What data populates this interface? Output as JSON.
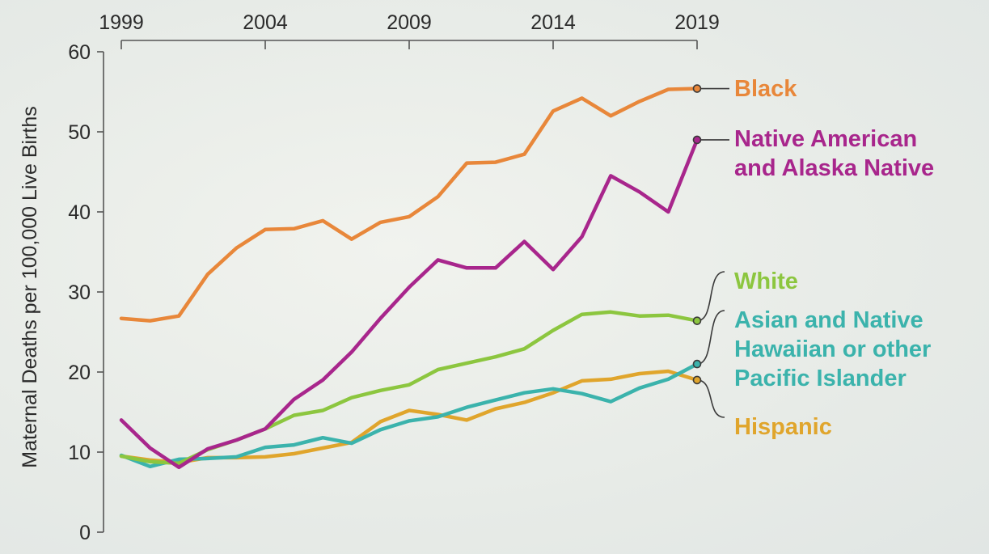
{
  "chart_data": {
    "type": "line",
    "xlabel": "",
    "ylabel": "Maternal Deaths per 100,000 Live Births",
    "xlim": [
      1999,
      2019
    ],
    "ylim": [
      0,
      60
    ],
    "x_ticks": [
      1999,
      2004,
      2009,
      2014,
      2019
    ],
    "y_ticks": [
      0,
      10,
      20,
      30,
      40,
      50,
      60
    ],
    "x_axis_position": "top",
    "grid": false,
    "legend_placement": "right, labels at line ends",
    "x": [
      1999,
      2000,
      2001,
      2002,
      2003,
      2004,
      2005,
      2006,
      2007,
      2008,
      2009,
      2010,
      2011,
      2012,
      2013,
      2014,
      2015,
      2016,
      2017,
      2018,
      2019
    ],
    "series": [
      {
        "name": "Black",
        "color": "#e8873a",
        "label_lines": [
          "Black"
        ],
        "values": [
          26.7,
          26.4,
          27.0,
          32.2,
          35.5,
          37.8,
          37.9,
          38.9,
          36.6,
          38.7,
          39.4,
          41.9,
          46.1,
          46.2,
          47.2,
          52.6,
          54.2,
          52.0,
          53.8,
          55.3,
          55.4
        ]
      },
      {
        "name": "Native American and Alaska Native",
        "color": "#a8268c",
        "label_lines": [
          "Native American",
          "and Alaska Native"
        ],
        "values": [
          14.0,
          10.5,
          8.1,
          10.4,
          11.5,
          12.9,
          16.6,
          19.0,
          22.5,
          26.7,
          30.6,
          34.0,
          33.0,
          33.0,
          36.3,
          32.8,
          36.9,
          44.5,
          42.5,
          40.0,
          49.0
        ]
      },
      {
        "name": "White",
        "color": "#8cc63f",
        "label_lines": [
          "White"
        ],
        "values": [
          9.5,
          8.8,
          8.6,
          10.3,
          11.5,
          12.9,
          14.6,
          15.2,
          16.8,
          17.7,
          18.4,
          20.3,
          21.1,
          21.9,
          22.9,
          25.2,
          27.2,
          27.5,
          27.0,
          27.1,
          26.4
        ]
      },
      {
        "name": "Asian and Native Hawaiian or other Pacific Islander",
        "color": "#3bb3ac",
        "label_lines": [
          "Asian and Native",
          "Hawaiian or other",
          "Pacific Islander"
        ],
        "values": [
          9.6,
          8.2,
          9.1,
          9.2,
          9.4,
          10.6,
          10.9,
          11.8,
          11.1,
          12.8,
          13.9,
          14.4,
          15.6,
          16.5,
          17.4,
          17.9,
          17.3,
          16.3,
          18.0,
          19.1,
          21.0
        ]
      },
      {
        "name": "Hispanic",
        "color": "#e0a52c",
        "label_lines": [
          "Hispanic"
        ],
        "values": [
          9.5,
          9.0,
          8.7,
          9.3,
          9.3,
          9.4,
          9.8,
          10.5,
          11.2,
          13.8,
          15.2,
          14.7,
          14.0,
          15.4,
          16.2,
          17.4,
          18.9,
          19.1,
          19.8,
          20.1,
          19.0
        ]
      }
    ]
  }
}
